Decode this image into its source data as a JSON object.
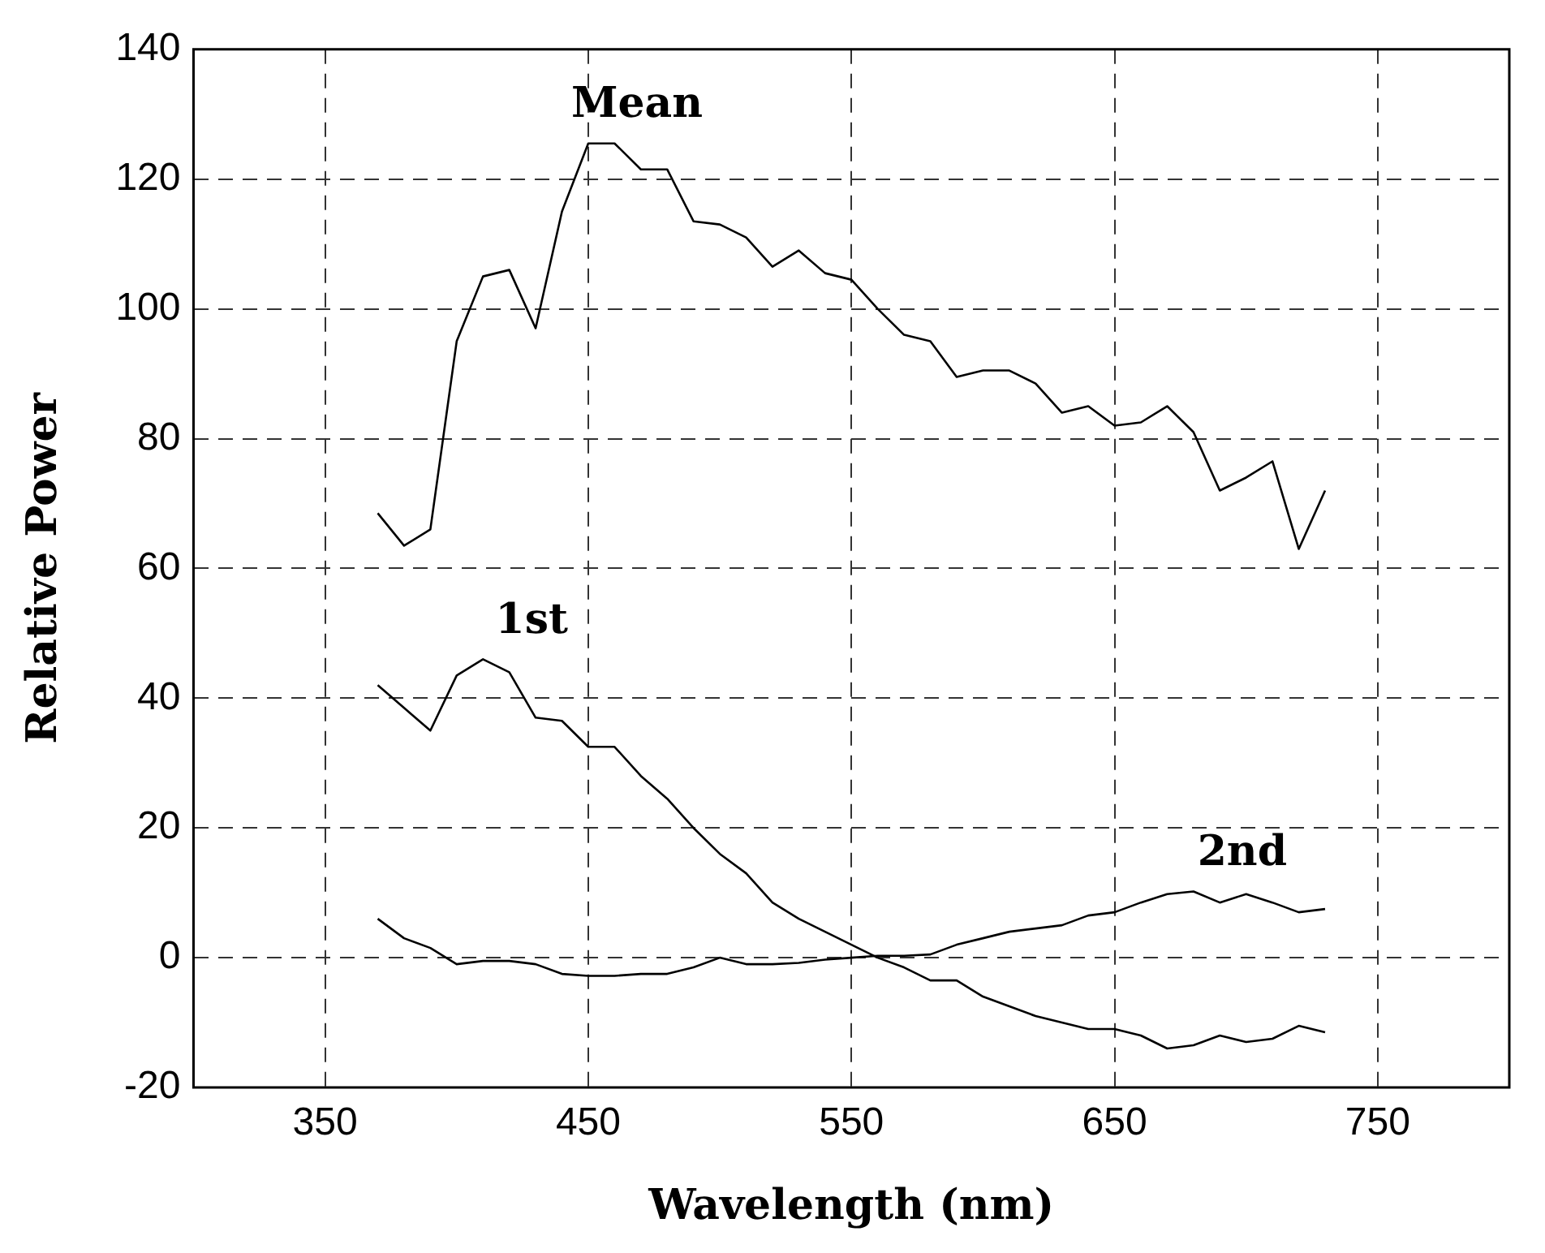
{
  "chart_data": {
    "type": "line",
    "xlabel": "Wavelength (nm)",
    "ylabel": "Relative Power",
    "x": [
      370,
      380,
      390,
      400,
      410,
      420,
      430,
      440,
      450,
      460,
      470,
      480,
      490,
      500,
      510,
      520,
      530,
      540,
      550,
      560,
      570,
      580,
      590,
      600,
      610,
      620,
      630,
      640,
      650,
      660,
      670,
      680,
      690,
      700,
      710,
      720,
      730
    ],
    "series": [
      {
        "name": "Mean",
        "color": "#000000",
        "values": [
          68.5,
          63.5,
          66,
          95,
          105,
          106,
          97,
          115,
          125.5,
          125.5,
          121.5,
          121.5,
          113.5,
          113,
          111,
          106.5,
          109,
          105.5,
          104.5,
          100,
          96,
          95,
          89.5,
          90.5,
          90.5,
          88.5,
          84,
          85,
          82,
          82.5,
          85,
          81,
          72,
          74,
          76.5,
          63,
          72
        ]
      },
      {
        "name": "1st",
        "color": "#000000",
        "values": [
          42,
          38.5,
          35,
          43.5,
          46,
          44,
          37,
          36.5,
          32.5,
          32.5,
          28,
          24.5,
          20,
          16,
          13,
          8.5,
          6,
          4,
          2,
          0,
          -1.5,
          -3.5,
          -3.5,
          -6,
          -7.5,
          -9,
          -10,
          -11,
          -11,
          -12,
          -14,
          -13.5,
          -12,
          -13,
          -12.5,
          -10.5,
          -11.5
        ]
      },
      {
        "name": "2nd",
        "color": "#000000",
        "values": [
          6,
          3,
          1.5,
          -1,
          -0.5,
          -0.5,
          -1,
          -2.5,
          -2.8,
          -2.8,
          -2.5,
          -2.5,
          -1.5,
          0,
          -1,
          -1,
          -0.8,
          -0.3,
          0,
          0.3,
          0.3,
          0.5,
          2,
          3,
          4,
          4.5,
          5,
          6.5,
          7,
          8.5,
          9.8,
          10.2,
          8.5,
          9.8,
          8.5,
          7,
          7.5
        ]
      }
    ],
    "xlim": [
      300,
      800
    ],
    "xticks": [
      350,
      450,
      550,
      650,
      750
    ],
    "ylim": [
      -20,
      140
    ],
    "yticks": [
      -20,
      0,
      20,
      40,
      60,
      80,
      100,
      120,
      140
    ],
    "grid": true,
    "legend": false,
    "marker": "none",
    "line_style": "solid"
  }
}
